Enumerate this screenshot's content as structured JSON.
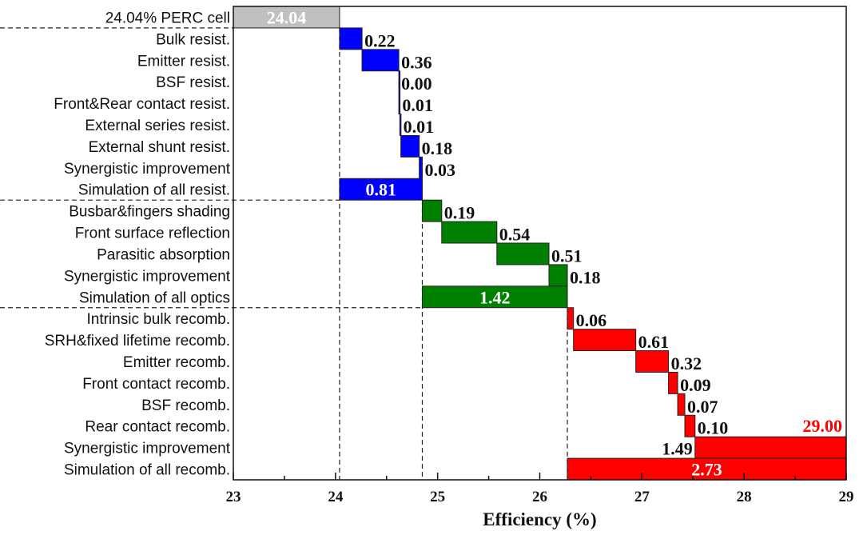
{
  "chart_data": {
    "type": "bar",
    "subtype": "waterfall-horizontal",
    "xlabel": "Efficiency (%)",
    "xlim": [
      23,
      29
    ],
    "xticks": [
      "23",
      "24",
      "25",
      "26",
      "27",
      "28",
      "29"
    ],
    "grid": false,
    "legend": "none",
    "colors": {
      "baseline": "#c0c0c0",
      "resistance": "#0000ff",
      "optics": "#008000",
      "recombination": "#ff0000",
      "total_label": "#ff0000"
    },
    "rows": [
      {
        "label": "24.04% PERC cell",
        "start": 23,
        "end": 24.04,
        "value": "24.04",
        "group": "baseline",
        "label_pos": "inside"
      },
      {
        "label": "Bulk resist.",
        "start": 24.04,
        "end": 24.26,
        "value": "0.22",
        "group": "resistance",
        "label_pos": "right"
      },
      {
        "label": "Emitter resist.",
        "start": 24.26,
        "end": 24.62,
        "value": "0.36",
        "group": "resistance",
        "label_pos": "right"
      },
      {
        "label": "BSF resist.",
        "start": 24.62,
        "end": 24.62,
        "value": "0.00",
        "group": "resistance",
        "label_pos": "right"
      },
      {
        "label": "Front&Rear contact resist.",
        "start": 24.62,
        "end": 24.63,
        "value": "0.01",
        "group": "resistance",
        "label_pos": "right"
      },
      {
        "label": "External series resist.",
        "start": 24.63,
        "end": 24.64,
        "value": "0.01",
        "group": "resistance",
        "label_pos": "right"
      },
      {
        "label": "External shunt resist.",
        "start": 24.64,
        "end": 24.82,
        "value": "0.18",
        "group": "resistance",
        "label_pos": "right"
      },
      {
        "label": "Synergistic improvement",
        "start": 24.82,
        "end": 24.85,
        "value": "0.03",
        "group": "resistance",
        "label_pos": "right"
      },
      {
        "label": "Simulation of all resist.",
        "start": 24.04,
        "end": 24.85,
        "value": "0.81",
        "group": "resistance",
        "label_pos": "inside"
      },
      {
        "label": "Busbar&fingers shading",
        "start": 24.85,
        "end": 25.04,
        "value": "0.19",
        "group": "optics",
        "label_pos": "right"
      },
      {
        "label": "Front surface reflection",
        "start": 25.04,
        "end": 25.58,
        "value": "0.54",
        "group": "optics",
        "label_pos": "right"
      },
      {
        "label": "Parasitic absorption",
        "start": 25.58,
        "end": 26.09,
        "value": "0.51",
        "group": "optics",
        "label_pos": "right"
      },
      {
        "label": "Synergistic improvement",
        "start": 26.09,
        "end": 26.27,
        "value": "0.18",
        "group": "optics",
        "label_pos": "right"
      },
      {
        "label": "Simulation of all optics",
        "start": 24.85,
        "end": 26.27,
        "value": "1.42",
        "group": "optics",
        "label_pos": "inside"
      },
      {
        "label": "Intrinsic bulk recomb.",
        "start": 26.27,
        "end": 26.33,
        "value": "0.06",
        "group": "recombination",
        "label_pos": "right"
      },
      {
        "label": "SRH&fixed lifetime recomb.",
        "start": 26.33,
        "end": 26.94,
        "value": "0.61",
        "group": "recombination",
        "label_pos": "right"
      },
      {
        "label": "Emitter recomb.",
        "start": 26.94,
        "end": 27.26,
        "value": "0.32",
        "group": "recombination",
        "label_pos": "right"
      },
      {
        "label": "Front contact recomb.",
        "start": 27.26,
        "end": 27.35,
        "value": "0.09",
        "group": "recombination",
        "label_pos": "right"
      },
      {
        "label": "BSF recomb.",
        "start": 27.35,
        "end": 27.42,
        "value": "0.07",
        "group": "recombination",
        "label_pos": "right"
      },
      {
        "label": "Rear contact recomb.",
        "start": 27.42,
        "end": 27.52,
        "value": "0.10",
        "group": "recombination",
        "label_pos": "right"
      },
      {
        "label": "Synergistic improvement",
        "start": 27.52,
        "end": 29.0,
        "value": "1.49",
        "group": "recombination",
        "label_pos": "left"
      },
      {
        "label": "Simulation of all recomb.",
        "start": 26.27,
        "end": 29.0,
        "value": "2.73",
        "group": "recombination",
        "label_pos": "inside"
      }
    ],
    "final_total": "29.00"
  }
}
